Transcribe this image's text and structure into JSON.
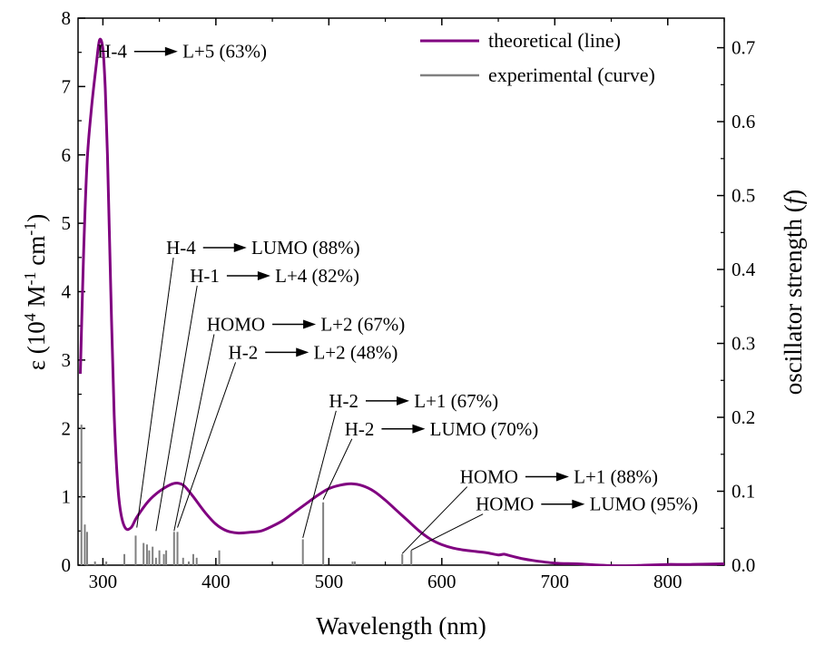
{
  "chart_data": {
    "type": "line",
    "xlabel": "Wavelength (nm)",
    "ylabel_left": {
      "prefix": "ε (10",
      "sup1": "4",
      "mid": " M",
      "sup2": "-1",
      "mid2": " cm",
      "sup3": "-1",
      "suffix": ")"
    },
    "ylabel_right": {
      "main": "oscillator strength (",
      "italic": "f",
      "suffix": ")"
    },
    "xlim": [
      278,
      850
    ],
    "ylim_left": [
      0,
      8
    ],
    "ylim_right": [
      0,
      0.74
    ],
    "xticks": [
      300,
      400,
      500,
      600,
      700,
      800
    ],
    "yticks_left": [
      0,
      1,
      2,
      3,
      4,
      5,
      6,
      7,
      8
    ],
    "yticks_right": [
      0.0,
      0.1,
      0.2,
      0.3,
      0.4,
      0.5,
      0.6,
      0.7
    ],
    "legend": {
      "position": "top-right",
      "entries": [
        {
          "label": "theoretical (line)",
          "color": "#800080"
        },
        {
          "label": "experimental (curve)",
          "color": "#808080"
        }
      ]
    },
    "series": [
      {
        "name": "theoretical (line)",
        "color": "#800080",
        "axis": "left",
        "x": [
          280,
          283,
          286,
          290,
          294,
          297,
          300,
          302,
          304,
          307,
          310,
          313,
          316,
          320,
          325,
          330,
          340,
          350,
          360,
          366,
          372,
          380,
          390,
          400,
          410,
          420,
          430,
          440,
          450,
          460,
          470,
          480,
          490,
          500,
          510,
          520,
          530,
          540,
          550,
          560,
          570,
          580,
          590,
          600,
          610,
          620,
          630,
          640,
          650,
          655,
          660,
          670,
          680,
          700,
          720,
          740,
          760,
          780,
          800,
          820,
          850
        ],
        "y": [
          2.8,
          4.6,
          5.9,
          6.7,
          7.3,
          7.68,
          7.55,
          7.0,
          6.0,
          4.0,
          2.2,
          1.2,
          0.75,
          0.54,
          0.55,
          0.7,
          0.93,
          1.08,
          1.18,
          1.2,
          1.16,
          1.0,
          0.78,
          0.6,
          0.5,
          0.47,
          0.48,
          0.5,
          0.57,
          0.66,
          0.78,
          0.9,
          1.02,
          1.12,
          1.17,
          1.19,
          1.16,
          1.08,
          0.95,
          0.8,
          0.65,
          0.5,
          0.38,
          0.3,
          0.25,
          0.22,
          0.2,
          0.18,
          0.15,
          0.16,
          0.14,
          0.1,
          0.07,
          0.03,
          0.02,
          0.0,
          -0.01,
          0.0,
          0.01,
          0.01,
          0.02
        ]
      },
      {
        "name": "experimental (curve)",
        "color": "#808080",
        "axis": "right",
        "type": "stick",
        "x": [
          281,
          284,
          286,
          293,
          303,
          319,
          329,
          336,
          339,
          341,
          344,
          347,
          350,
          354,
          356,
          363,
          366,
          371,
          376,
          380,
          383,
          403,
          477,
          495,
          521,
          523,
          565,
          573
        ],
        "y": [
          0.19,
          0.055,
          0.045,
          0.005,
          0.005,
          0.015,
          0.04,
          0.03,
          0.028,
          0.02,
          0.025,
          0.01,
          0.02,
          0.015,
          0.02,
          0.045,
          0.045,
          0.01,
          0.005,
          0.015,
          0.01,
          0.02,
          0.035,
          0.085,
          0.005,
          0.005,
          0.015,
          0.02
        ]
      }
    ],
    "annotations": [
      {
        "text": "H-4 → L+5 (63%)",
        "from": "H-4",
        "to": "L+5 (63%)",
        "ref_x": 298,
        "ref_y": 7.68,
        "leader": false,
        "lx": 295,
        "ly": 7.42
      },
      {
        "text": "H-4 → LUMO (88%)",
        "from": "H-4",
        "to": "LUMO (88%)",
        "ref_x": 330,
        "ref_y": 0.55,
        "leader": true,
        "lx": 356,
        "ly": 4.55
      },
      {
        "text": "H-1 → L+4 (82%)",
        "from": "H-1",
        "to": "L+4 (82%)",
        "ref_x": 347,
        "ref_y": 0.5,
        "leader": true,
        "lx": 377,
        "ly": 4.14
      },
      {
        "text": "HOMO → L+2 (67%)",
        "from": "HOMO",
        "to": "L+2 (67%)",
        "ref_x": 363,
        "ref_y": 0.5,
        "leader": true,
        "lx": 392,
        "ly": 3.43
      },
      {
        "text": "H-2 → L+2 (48%)",
        "from": "H-2",
        "to": "L+2 (48%)",
        "ref_x": 366,
        "ref_y": 0.55,
        "leader": true,
        "lx": 411,
        "ly": 3.02
      },
      {
        "text": "H-2 → L+1 (67%)",
        "from": "H-2",
        "to": "L+1 (67%)",
        "ref_x": 477,
        "ref_y": 0.4,
        "leader": true,
        "lx": 500,
        "ly": 2.31
      },
      {
        "text": "H-2 → LUMO (70%)",
        "from": "H-2",
        "to": "LUMO (70%)",
        "ref_x": 495,
        "ref_y": 0.96,
        "leader": true,
        "lx": 514,
        "ly": 1.9
      },
      {
        "text": "HOMO → L+1 (88%)",
        "from": "HOMO",
        "to": "L+1 (88%)",
        "ref_x": 565,
        "ref_y": 0.17,
        "leader": true,
        "lx": 616,
        "ly": 1.2
      },
      {
        "text": "HOMO → LUMO (95%)",
        "from": "HOMO",
        "to": "LUMO (95%)",
        "ref_x": 573,
        "ref_y": 0.22,
        "leader": true,
        "lx": 630,
        "ly": 0.8
      }
    ]
  }
}
